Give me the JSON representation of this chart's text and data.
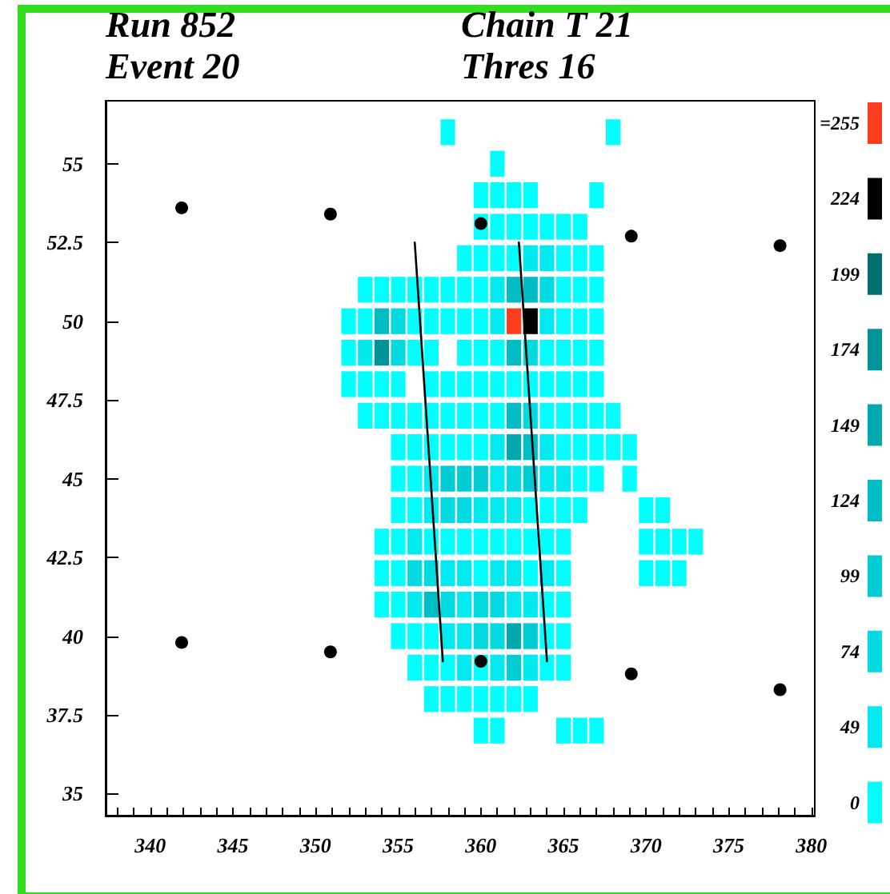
{
  "chart_data": {
    "type": "scatter",
    "marker": "square",
    "legend": "right",
    "annotations": [
      "Run 852",
      "Event 20",
      "Chain T 21",
      "Thres 16"
    ],
    "xlim": [
      337.3,
      380.2
    ],
    "xticks": [
      {
        "value": 338,
        "label": null
      },
      {
        "value": 339,
        "label": null
      },
      340,
      {
        "value": 341,
        "label": null
      },
      {
        "value": 342,
        "label": null
      },
      {
        "value": 343,
        "label": null
      },
      {
        "value": 344,
        "label": null
      },
      345,
      {
        "value": 346,
        "label": null
      },
      {
        "value": 347,
        "label": null
      },
      {
        "value": 348,
        "label": null
      },
      {
        "value": 349,
        "label": null
      },
      350,
      {
        "value": 351,
        "label": null
      },
      {
        "value": 352,
        "label": null
      },
      {
        "value": 353,
        "label": null
      },
      {
        "value": 354,
        "label": null
      },
      355,
      {
        "value": 356,
        "label": null
      },
      {
        "value": 357,
        "label": null
      },
      {
        "value": 358,
        "label": null
      },
      {
        "value": 359,
        "label": null
      },
      360,
      {
        "value": 361,
        "label": null
      },
      {
        "value": 362,
        "label": null
      },
      {
        "value": 363,
        "label": null
      },
      {
        "value": 364,
        "label": null
      },
      365,
      {
        "value": 366,
        "label": null
      },
      {
        "value": 367,
        "label": null
      },
      {
        "value": 368,
        "label": null
      },
      {
        "value": 369,
        "label": null
      },
      370,
      {
        "value": 371,
        "label": null
      },
      {
        "value": 372,
        "label": null
      },
      {
        "value": 373,
        "label": null
      },
      {
        "value": 374,
        "label": null
      },
      375,
      {
        "value": 376,
        "label": null
      },
      {
        "value": 377,
        "label": null
      },
      {
        "value": 378,
        "label": null
      },
      {
        "value": 379,
        "label": null
      },
      380
    ],
    "ylim": [
      34.3,
      57
    ],
    "yticks": [
      35,
      37.5,
      40,
      42.5,
      45,
      47.5,
      50,
      52.5,
      55
    ],
    "series": [
      {
        "name": "0",
        "color": "#00ffff",
        "x": [
          358,
          368,
          361,
          360,
          361,
          362,
          363,
          367,
          360,
          361,
          362,
          363,
          364,
          365,
          366,
          359,
          360,
          361,
          362,
          365,
          366,
          367,
          353,
          354,
          355,
          356,
          357,
          358,
          359,
          360,
          365,
          366,
          367,
          352,
          353,
          356,
          357,
          358,
          359,
          360,
          365,
          366,
          367,
          352,
          356,
          357,
          359,
          360,
          361,
          364,
          365,
          366,
          367,
          352,
          353,
          354,
          355,
          357,
          358,
          359,
          360,
          361,
          362,
          363,
          364,
          365,
          366,
          367,
          353,
          354,
          355,
          356,
          357,
          358,
          359,
          360,
          361,
          364,
          365,
          366,
          367,
          368,
          355,
          356,
          357,
          358,
          359,
          360,
          365,
          366,
          367,
          368,
          369,
          355,
          356,
          366,
          367,
          369,
          355,
          356,
          363,
          364,
          365,
          366,
          370,
          371,
          354,
          355,
          357,
          358,
          359,
          360,
          361,
          362,
          363,
          364,
          365,
          370,
          371,
          372,
          373,
          354,
          355,
          360,
          363,
          365,
          370,
          371,
          372,
          354,
          355,
          364,
          365,
          355,
          356,
          357,
          364,
          365,
          356,
          357,
          358,
          360,
          364,
          365,
          357,
          358,
          359,
          360,
          361,
          362,
          363,
          360,
          361,
          365,
          366,
          367
        ],
        "values": [
          56,
          56,
          55,
          54,
          54,
          54,
          54,
          54,
          53,
          53,
          53,
          53,
          53,
          53,
          53,
          52,
          52,
          52,
          52,
          52,
          52,
          52,
          51,
          51,
          51,
          51,
          51,
          51,
          51,
          51,
          51,
          51,
          51,
          50,
          50,
          50,
          50,
          50,
          50,
          50,
          50,
          50,
          50,
          49,
          49,
          49,
          49,
          49,
          49,
          49,
          49,
          49,
          49,
          48,
          48,
          48,
          48,
          48,
          48,
          48,
          48,
          48,
          48,
          48,
          48,
          48,
          48,
          48,
          47,
          47,
          47,
          47,
          47,
          47,
          47,
          47,
          47,
          47,
          47,
          47,
          47,
          47,
          46,
          46,
          46,
          46,
          46,
          46,
          46,
          46,
          46,
          46,
          46,
          45,
          45,
          45,
          45,
          45,
          44,
          44,
          44,
          44,
          44,
          44,
          44,
          44,
          43,
          43,
          43,
          43,
          43,
          43,
          43,
          43,
          43,
          43,
          43,
          43,
          43,
          43,
          43,
          42,
          42,
          42,
          42,
          42,
          42,
          42,
          42,
          41,
          41,
          41,
          41,
          40,
          40,
          40,
          40,
          40,
          39,
          39,
          39,
          39,
          39,
          39,
          38,
          38,
          38,
          38,
          38,
          38,
          38,
          37,
          37,
          37,
          37,
          37
        ]
      },
      {
        "name": "49",
        "color": "#00eaf0",
        "x": [
          363,
          364,
          361,
          361,
          364,
          353,
          361,
          364,
          357,
          361,
          364,
          365,
          357,
          360,
          361,
          362,
          356,
          358,
          359,
          361,
          362,
          364,
          356,
          359,
          362,
          363,
          358,
          359,
          359,
          361,
          363
        ],
        "values": [
          52,
          52,
          51,
          50,
          50,
          49,
          46,
          46,
          45,
          45,
          45,
          45,
          44,
          44,
          44,
          44,
          43,
          42,
          42,
          42,
          42,
          42,
          41,
          41,
          41,
          41,
          40,
          40,
          39,
          39,
          39
        ]
      },
      {
        "name": "74",
        "color": "#00dae0",
        "x": [
          364,
          355,
          355,
          363,
          363,
          362,
          358,
          359,
          356,
          357,
          358,
          360,
          361,
          360,
          361
        ],
        "values": [
          51,
          50,
          49,
          49,
          47,
          45,
          44,
          44,
          42,
          42,
          41,
          41,
          41,
          40,
          40
        ]
      },
      {
        "name": "99",
        "color": "#00ccd4",
        "x": [
          358,
          359,
          360,
          363,
          363,
          362
        ],
        "values": [
          45,
          45,
          45,
          45,
          40,
          39
        ]
      },
      {
        "name": "124",
        "color": "#00bcc4",
        "x": [
          362,
          363,
          354,
          362,
          362,
          363,
          357
        ],
        "values": [
          51,
          51,
          50,
          49,
          47,
          46,
          41
        ]
      },
      {
        "name": "149",
        "color": "#00a8b0",
        "x": [
          362,
          362
        ],
        "values": [
          46,
          40
        ]
      },
      {
        "name": "174",
        "color": "#009498",
        "x": [
          354
        ],
        "values": [
          49
        ]
      },
      {
        "name": "199",
        "color": "#007070"
      },
      {
        "name": "224",
        "color": "#000000",
        "x": [
          363
        ],
        "values": [
          50
        ]
      },
      {
        "name": "=255",
        "color": "#ff3c1e",
        "x": [
          362
        ],
        "values": [
          50
        ]
      },
      {
        "marker": "circle",
        "color": "#000000",
        "x": [
          341.9,
          350.9,
          360,
          369.1,
          378.1,
          341.9,
          350.9,
          360,
          369.1,
          378.1
        ],
        "values": [
          53.6,
          53.4,
          53.1,
          52.7,
          52.4,
          39.8,
          39.5,
          39.2,
          38.8,
          38.3
        ]
      },
      {
        "type": "line",
        "marker": "none",
        "line_style": "solid",
        "color": "#000000",
        "x": [
          356.0,
          357.7
        ],
        "values": [
          52.5,
          39.2
        ]
      },
      {
        "type": "line",
        "marker": "none",
        "line_style": "solid",
        "color": "#000000",
        "x": [
          362.3,
          364.0
        ],
        "values": [
          52.5,
          39.2
        ]
      }
    ]
  }
}
